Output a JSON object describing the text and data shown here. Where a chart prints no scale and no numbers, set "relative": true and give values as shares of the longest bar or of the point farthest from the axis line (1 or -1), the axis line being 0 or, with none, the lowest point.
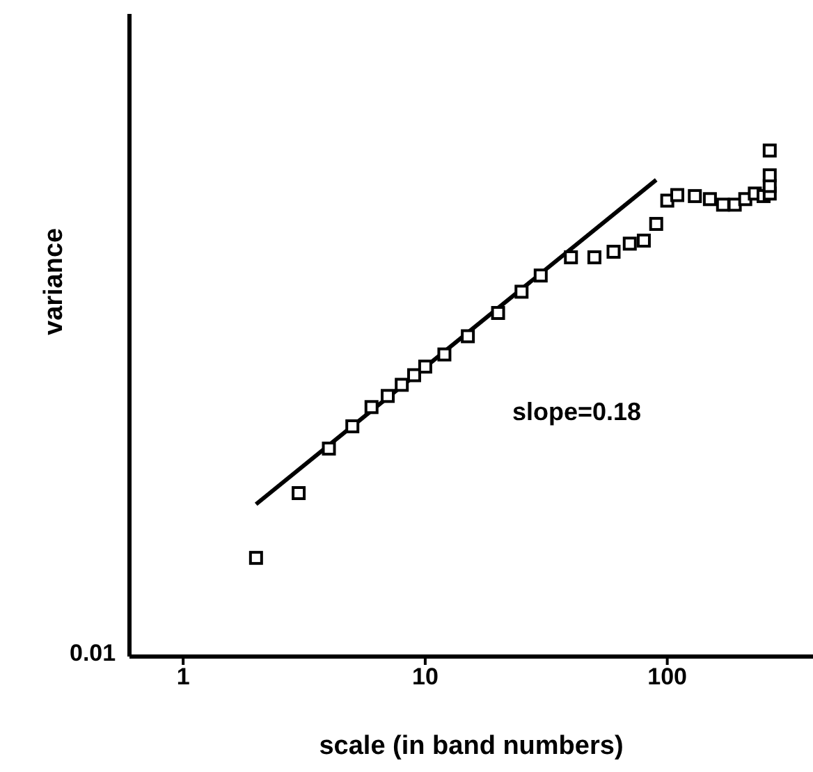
{
  "chart_data": {
    "type": "scatter",
    "relative": true,
    "log": "x",
    "xlabel": "scale (in band numbers)",
    "ylabel": "variance",
    "xlim": [
      0.6,
      400
    ],
    "xticks": [
      1,
      10,
      100
    ],
    "grid": false,
    "legend": false,
    "annotations": [
      "slope=0.18",
      "0.01"
    ],
    "series": [
      {
        "color": "#000000",
        "marker": "square",
        "x": [
          2,
          3,
          4,
          5,
          6,
          7,
          8,
          9,
          10,
          12,
          15,
          20,
          25,
          30,
          40,
          50,
          60,
          70,
          80,
          90,
          100,
          110,
          130,
          150,
          170,
          190,
          210,
          230,
          250,
          265,
          265,
          265,
          265
        ],
        "values": [
          0.195,
          0.323,
          0.411,
          0.455,
          0.493,
          0.515,
          0.537,
          0.556,
          0.573,
          0.597,
          0.633,
          0.679,
          0.721,
          0.753,
          0.789,
          0.789,
          0.8,
          0.816,
          0.822,
          0.855,
          0.901,
          0.912,
          0.91,
          0.904,
          0.893,
          0.893,
          0.904,
          0.915,
          0.91,
          0.915,
          0.93,
          0.951,
          1.0
        ]
      },
      {
        "type": "line",
        "color": "#000000",
        "x": [
          2,
          90
        ],
        "values": [
          0.301,
          0.942
        ]
      }
    ]
  }
}
